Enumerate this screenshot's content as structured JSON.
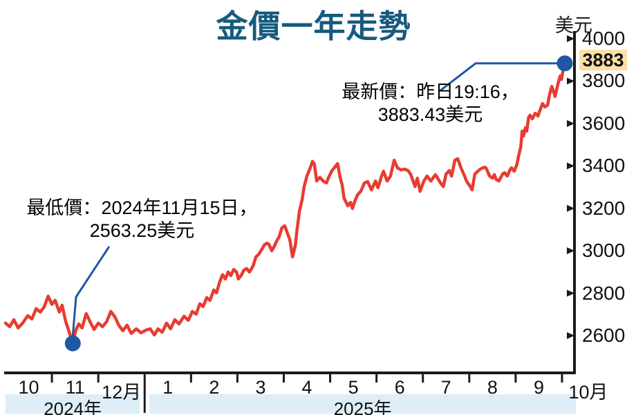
{
  "page": {
    "title": "金價一年走勢",
    "unit_label": "美元"
  },
  "colors": {
    "title": "#175a7e",
    "line": "#e73c31",
    "marker_blue": "#1e57a5",
    "year_band_bg": "#ddeef9",
    "badge_bg": "#fbdfa6",
    "axis": "#1a1a1a"
  },
  "annotations": {
    "latest": {
      "line1": "最新價：昨日19:16，",
      "line2": "3883.43美元"
    },
    "low": {
      "line1": "最低價：2024年11月15日，",
      "line2": "2563.25美元"
    }
  },
  "axis_badge": "3883",
  "chart_data": {
    "type": "line",
    "title": "金價一年走勢",
    "ylabel": "美元",
    "legend": [],
    "grid": false,
    "x_axis": {
      "months": [
        "10",
        "11",
        "12月",
        "1",
        "2",
        "3",
        "4",
        "5",
        "6",
        "7",
        "8",
        "9",
        "10月"
      ],
      "year_bands": [
        {
          "label": "2024年",
          "start_month": 0,
          "end_month": 3
        },
        {
          "label": "2025年",
          "start_month": 3,
          "end_month": 12
        }
      ]
    },
    "y_axis": {
      "ticks": [
        4000,
        3800,
        3600,
        3400,
        3200,
        3000,
        2800,
        2600
      ],
      "min": 2400,
      "max": 4000
    },
    "markers": [
      {
        "type": "low",
        "month": 1.45,
        "price": 2563.25
      },
      {
        "type": "latest",
        "month": 12.06,
        "price": 3883.43
      }
    ],
    "series": [
      {
        "name": "gold_price_usd",
        "points": [
          [
            0,
            2659
          ],
          [
            0.09,
            2642
          ],
          [
            0.18,
            2675
          ],
          [
            0.27,
            2636
          ],
          [
            0.37,
            2659
          ],
          [
            0.48,
            2694
          ],
          [
            0.57,
            2678
          ],
          [
            0.66,
            2727
          ],
          [
            0.75,
            2711
          ],
          [
            0.83,
            2734
          ],
          [
            0.92,
            2786
          ],
          [
            1,
            2747
          ],
          [
            1.07,
            2766
          ],
          [
            1.16,
            2711
          ],
          [
            1.22,
            2743
          ],
          [
            1.3,
            2665
          ],
          [
            1.36,
            2626
          ],
          [
            1.45,
            2563.25
          ],
          [
            1.52,
            2629
          ],
          [
            1.58,
            2655
          ],
          [
            1.65,
            2636
          ],
          [
            1.74,
            2704
          ],
          [
            1.83,
            2662
          ],
          [
            1.91,
            2629
          ],
          [
            2,
            2659
          ],
          [
            2.09,
            2642
          ],
          [
            2.18,
            2665
          ],
          [
            2.27,
            2714
          ],
          [
            2.36,
            2688
          ],
          [
            2.44,
            2649
          ],
          [
            2.53,
            2623
          ],
          [
            2.62,
            2649
          ],
          [
            2.71,
            2610
          ],
          [
            2.82,
            2632
          ],
          [
            2.92,
            2613
          ],
          [
            3.03,
            2626
          ],
          [
            3.12,
            2632
          ],
          [
            3.21,
            2603
          ],
          [
            3.29,
            2632
          ],
          [
            3.38,
            2616
          ],
          [
            3.47,
            2659
          ],
          [
            3.56,
            2632
          ],
          [
            3.65,
            2675
          ],
          [
            3.74,
            2655
          ],
          [
            3.85,
            2691
          ],
          [
            3.94,
            2672
          ],
          [
            4.03,
            2714
          ],
          [
            4.11,
            2701
          ],
          [
            4.19,
            2750
          ],
          [
            4.26,
            2737
          ],
          [
            4.34,
            2779
          ],
          [
            4.41,
            2766
          ],
          [
            4.49,
            2815
          ],
          [
            4.55,
            2802
          ],
          [
            4.62,
            2854
          ],
          [
            4.68,
            2887
          ],
          [
            4.74,
            2867
          ],
          [
            4.8,
            2900
          ],
          [
            4.86,
            2883
          ],
          [
            4.92,
            2912
          ],
          [
            4.98,
            2900
          ],
          [
            5.02,
            2867
          ],
          [
            5.08,
            2883
          ],
          [
            5.14,
            2909
          ],
          [
            5.2,
            2916
          ],
          [
            5.26,
            2900
          ],
          [
            5.34,
            2929
          ],
          [
            5.4,
            2971
          ],
          [
            5.46,
            2984
          ],
          [
            5.52,
            3004
          ],
          [
            5.58,
            3027
          ],
          [
            5.64,
            3036
          ],
          [
            5.68,
            3030
          ],
          [
            5.74,
            3000
          ],
          [
            5.8,
            3023
          ],
          [
            5.84,
            3043
          ],
          [
            5.9,
            3066
          ],
          [
            5.96,
            3108
          ],
          [
            6.02,
            3118
          ],
          [
            6.08,
            3082
          ],
          [
            6.13,
            3053
          ],
          [
            6.19,
            2971
          ],
          [
            6.25,
            3027
          ],
          [
            6.29,
            3108
          ],
          [
            6.34,
            3189
          ],
          [
            6.4,
            3245
          ],
          [
            6.44,
            3303
          ],
          [
            6.5,
            3352
          ],
          [
            6.56,
            3385
          ],
          [
            6.62,
            3421
          ],
          [
            6.66,
            3408
          ],
          [
            6.71,
            3329
          ],
          [
            6.78,
            3346
          ],
          [
            6.86,
            3326
          ],
          [
            6.92,
            3320
          ],
          [
            6.98,
            3352
          ],
          [
            7.04,
            3378
          ],
          [
            7.1,
            3394
          ],
          [
            7.16,
            3411
          ],
          [
            7.22,
            3342
          ],
          [
            7.26,
            3310
          ],
          [
            7.3,
            3248
          ],
          [
            7.38,
            3212
          ],
          [
            7.44,
            3228
          ],
          [
            7.48,
            3199
          ],
          [
            7.54,
            3238
          ],
          [
            7.59,
            3264
          ],
          [
            7.66,
            3280
          ],
          [
            7.74,
            3320
          ],
          [
            7.81,
            3326
          ],
          [
            7.89,
            3287
          ],
          [
            7.98,
            3329
          ],
          [
            8.03,
            3297
          ],
          [
            8.11,
            3352
          ],
          [
            8.15,
            3375
          ],
          [
            8.23,
            3329
          ],
          [
            8.3,
            3352
          ],
          [
            8.38,
            3427
          ],
          [
            8.45,
            3391
          ],
          [
            8.53,
            3381
          ],
          [
            8.6,
            3385
          ],
          [
            8.68,
            3378
          ],
          [
            8.74,
            3359
          ],
          [
            8.83,
            3303
          ],
          [
            8.88,
            3342
          ],
          [
            8.94,
            3280
          ],
          [
            9.02,
            3329
          ],
          [
            9.09,
            3352
          ],
          [
            9.17,
            3329
          ],
          [
            9.27,
            3359
          ],
          [
            9.38,
            3320
          ],
          [
            9.44,
            3303
          ],
          [
            9.5,
            3362
          ],
          [
            9.57,
            3378
          ],
          [
            9.62,
            3352
          ],
          [
            9.69,
            3427
          ],
          [
            9.75,
            3434
          ],
          [
            9.82,
            3391
          ],
          [
            9.9,
            3352
          ],
          [
            9.94,
            3329
          ],
          [
            10.02,
            3303
          ],
          [
            10.06,
            3287
          ],
          [
            10.12,
            3362
          ],
          [
            10.2,
            3378
          ],
          [
            10.24,
            3385
          ],
          [
            10.32,
            3394
          ],
          [
            10.36,
            3391
          ],
          [
            10.44,
            3352
          ],
          [
            10.5,
            3342
          ],
          [
            10.54,
            3359
          ],
          [
            10.58,
            3336
          ],
          [
            10.64,
            3329
          ],
          [
            10.72,
            3362
          ],
          [
            10.76,
            3368
          ],
          [
            10.82,
            3352
          ],
          [
            10.87,
            3378
          ],
          [
            10.91,
            3391
          ],
          [
            10.97,
            3375
          ],
          [
            11.03,
            3408
          ],
          [
            11.06,
            3443
          ],
          [
            11.11,
            3489
          ],
          [
            11.14,
            3564
          ],
          [
            11.17,
            3541
          ],
          [
            11.21,
            3580
          ],
          [
            11.24,
            3564
          ],
          [
            11.28,
            3629
          ],
          [
            11.31,
            3639
          ],
          [
            11.36,
            3622
          ],
          [
            11.42,
            3648
          ],
          [
            11.46,
            3642
          ],
          [
            11.48,
            3635
          ],
          [
            11.54,
            3671
          ],
          [
            11.58,
            3694
          ],
          [
            11.63,
            3678
          ],
          [
            11.69,
            3687
          ],
          [
            11.73,
            3736
          ],
          [
            11.78,
            3775
          ],
          [
            11.84,
            3736
          ],
          [
            11.85,
            3727
          ],
          [
            11.91,
            3785
          ],
          [
            11.96,
            3824
          ],
          [
            11.99,
            3808
          ],
          [
            12.03,
            3863
          ],
          [
            12.06,
            3883.43
          ]
        ]
      }
    ]
  }
}
